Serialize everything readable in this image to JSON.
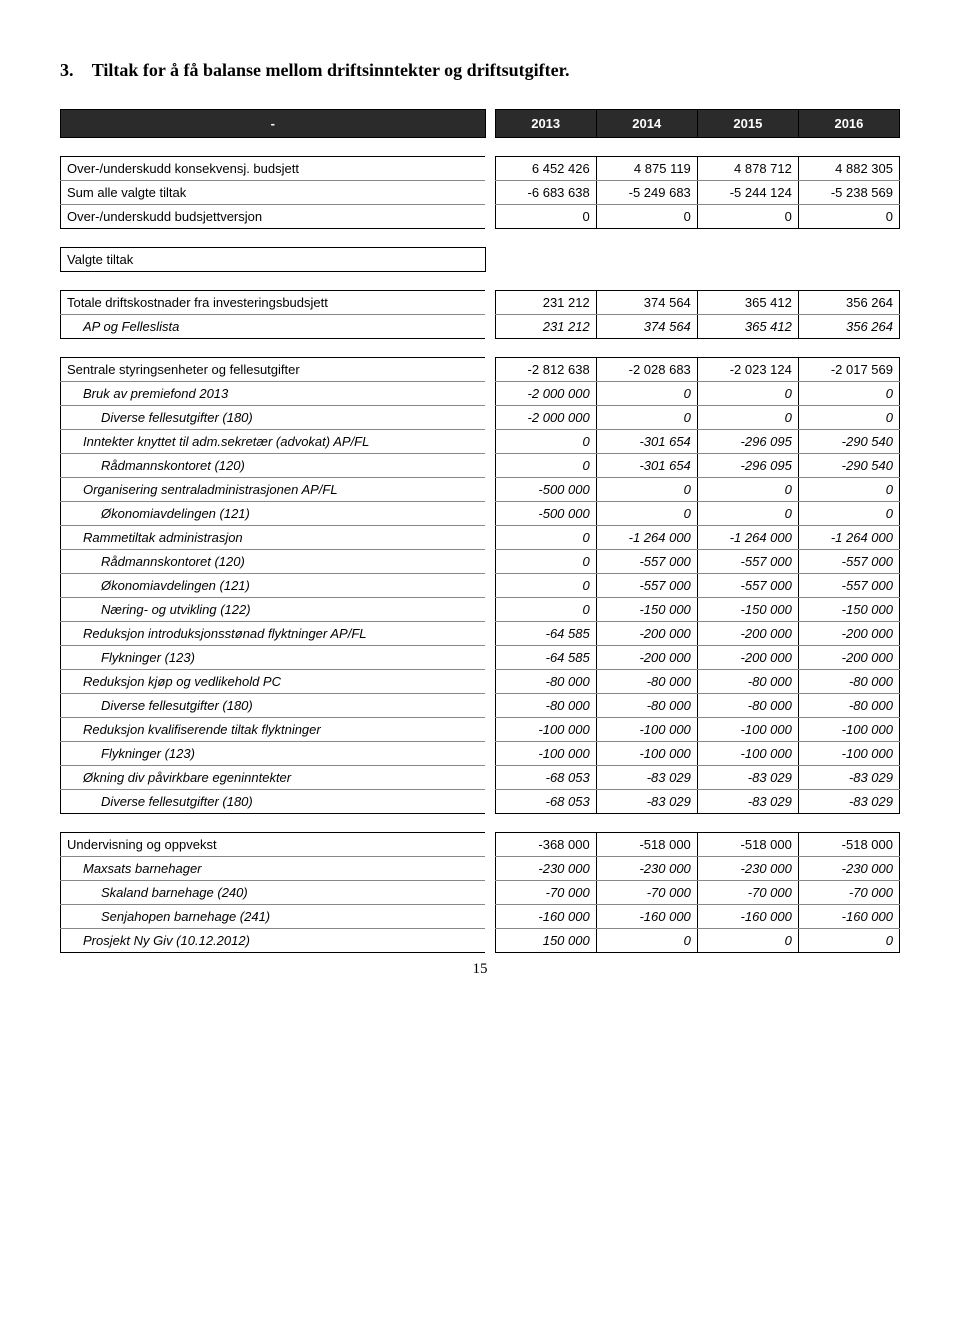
{
  "heading": {
    "num": "3.",
    "text": "Tiltak for å få balanse mellom driftsinntekter og driftsutgifter."
  },
  "years": [
    "2013",
    "2014",
    "2015",
    "2016"
  ],
  "header_left": "-",
  "summary": {
    "rows": [
      {
        "label": "Over-/underskudd konsekvensj. budsjett",
        "vals": [
          "6 452 426",
          "4 875 119",
          "4 878 712",
          "4 882 305"
        ]
      },
      {
        "label": "Sum alle valgte tiltak",
        "vals": [
          "-6 683 638",
          "-5 249 683",
          "-5 244 124",
          "-5 238 569"
        ]
      },
      {
        "label": "Over-/underskudd budsjettversjon",
        "vals": [
          "0",
          "0",
          "0",
          "0"
        ]
      }
    ]
  },
  "valgte_label": "Valgte tiltak",
  "drifts": {
    "head": {
      "label": "Totale driftskostnader fra investeringsbudsjett",
      "vals": [
        "231 212",
        "374 564",
        "365 412",
        "356 264"
      ]
    },
    "sub": {
      "label": "AP og Felleslista",
      "vals": [
        "231 212",
        "374 564",
        "365 412",
        "356 264"
      ]
    }
  },
  "sentrale": {
    "head": {
      "label": "Sentrale styringsenheter og fellesutgifter",
      "vals": [
        "-2 812 638",
        "-2 028 683",
        "-2 023 124",
        "-2 017 569"
      ]
    },
    "rows": [
      {
        "label": "Bruk av premiefond 2013",
        "indent": 1,
        "italic": true,
        "vals": [
          "-2 000 000",
          "0",
          "0",
          "0"
        ]
      },
      {
        "label": "Diverse fellesutgifter (180)",
        "indent": 2,
        "italic": true,
        "vals": [
          "-2 000 000",
          "0",
          "0",
          "0"
        ]
      },
      {
        "label": "Inntekter knyttet til adm.sekretær (advokat) AP/FL",
        "indent": 1,
        "italic": true,
        "vals": [
          "0",
          "-301 654",
          "-296 095",
          "-290 540"
        ]
      },
      {
        "label": "Rådmannskontoret (120)",
        "indent": 2,
        "italic": true,
        "vals": [
          "0",
          "-301 654",
          "-296 095",
          "-290 540"
        ]
      },
      {
        "label": "Organisering sentraladministrasjonen AP/FL",
        "indent": 1,
        "italic": true,
        "vals": [
          "-500 000",
          "0",
          "0",
          "0"
        ]
      },
      {
        "label": "Økonomiavdelingen (121)",
        "indent": 2,
        "italic": true,
        "vals": [
          "-500 000",
          "0",
          "0",
          "0"
        ]
      },
      {
        "label": "Rammetiltak administrasjon",
        "indent": 1,
        "italic": true,
        "vals": [
          "0",
          "-1 264 000",
          "-1 264 000",
          "-1 264 000"
        ]
      },
      {
        "label": "Rådmannskontoret (120)",
        "indent": 2,
        "italic": true,
        "vals": [
          "0",
          "-557 000",
          "-557 000",
          "-557 000"
        ]
      },
      {
        "label": "Økonomiavdelingen (121)",
        "indent": 2,
        "italic": true,
        "vals": [
          "0",
          "-557 000",
          "-557 000",
          "-557 000"
        ]
      },
      {
        "label": "Næring- og utvikling (122)",
        "indent": 2,
        "italic": true,
        "vals": [
          "0",
          "-150 000",
          "-150 000",
          "-150 000"
        ]
      },
      {
        "label": "Reduksjon introduksjonsstønad flyktninger AP/FL",
        "indent": 1,
        "italic": true,
        "vals": [
          "-64 585",
          "-200 000",
          "-200 000",
          "-200 000"
        ]
      },
      {
        "label": "Flykninger (123)",
        "indent": 2,
        "italic": true,
        "vals": [
          "-64 585",
          "-200 000",
          "-200 000",
          "-200 000"
        ]
      },
      {
        "label": "Reduksjon kjøp og vedlikehold PC",
        "indent": 1,
        "italic": true,
        "vals": [
          "-80 000",
          "-80 000",
          "-80 000",
          "-80 000"
        ]
      },
      {
        "label": "Diverse fellesutgifter (180)",
        "indent": 2,
        "italic": true,
        "vals": [
          "-80 000",
          "-80 000",
          "-80 000",
          "-80 000"
        ]
      },
      {
        "label": "Reduksjon kvalifiserende tiltak flyktninger",
        "indent": 1,
        "italic": true,
        "vals": [
          "-100 000",
          "-100 000",
          "-100 000",
          "-100 000"
        ]
      },
      {
        "label": "Flykninger (123)",
        "indent": 2,
        "italic": true,
        "vals": [
          "-100 000",
          "-100 000",
          "-100 000",
          "-100 000"
        ]
      },
      {
        "label": "Økning div påvirkbare egeninntekter",
        "indent": 1,
        "italic": true,
        "vals": [
          "-68 053",
          "-83 029",
          "-83 029",
          "-83 029"
        ]
      },
      {
        "label": "Diverse fellesutgifter (180)",
        "indent": 2,
        "italic": true,
        "vals": [
          "-68 053",
          "-83 029",
          "-83 029",
          "-83 029"
        ]
      }
    ]
  },
  "undervisning": {
    "head": {
      "label": "Undervisning og oppvekst",
      "vals": [
        "-368 000",
        "-518 000",
        "-518 000",
        "-518 000"
      ]
    },
    "rows": [
      {
        "label": "Maxsats barnehager",
        "indent": 1,
        "italic": true,
        "vals": [
          "-230 000",
          "-230 000",
          "-230 000",
          "-230 000"
        ]
      },
      {
        "label": "Skaland barnehage (240)",
        "indent": 2,
        "italic": true,
        "vals": [
          "-70 000",
          "-70 000",
          "-70 000",
          "-70 000"
        ]
      },
      {
        "label": "Senjahopen barnehage (241)",
        "indent": 2,
        "italic": true,
        "vals": [
          "-160 000",
          "-160 000",
          "-160 000",
          "-160 000"
        ]
      },
      {
        "label": "Prosjekt Ny Giv (10.12.2012)",
        "indent": 1,
        "italic": true,
        "vals": [
          "150 000",
          "0",
          "0",
          "0"
        ]
      }
    ]
  },
  "page_num": "15"
}
